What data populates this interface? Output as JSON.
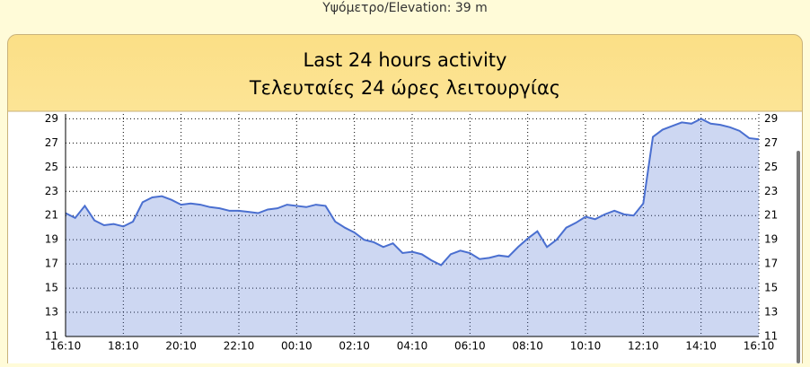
{
  "header": {
    "elevation": "Υψόμετρο/Elevation: 39 m"
  },
  "chart_data": {
    "type": "area",
    "title": "Last 24 hours activity",
    "subtitle": "Τελευταίες 24 ώρες λειτουργίας",
    "categories": [
      "16:10",
      null,
      null,
      null,
      null,
      null,
      "18:10",
      null,
      null,
      null,
      null,
      null,
      "20:10",
      null,
      null,
      null,
      null,
      null,
      "22:10",
      null,
      null,
      null,
      null,
      null,
      "00:10",
      null,
      null,
      null,
      null,
      null,
      "02:10",
      null,
      null,
      null,
      null,
      null,
      "04:10",
      null,
      null,
      null,
      null,
      null,
      "06:10",
      null,
      null,
      null,
      null,
      null,
      "08:10",
      null,
      null,
      null,
      null,
      null,
      "10:10",
      null,
      null,
      null,
      null,
      null,
      "12:10",
      null,
      null,
      null,
      null,
      null,
      "14:10",
      null,
      null,
      null,
      null,
      null,
      "16:10"
    ],
    "values": [
      21.2,
      20.8,
      21.8,
      20.6,
      20.2,
      20.3,
      20.1,
      20.5,
      22.1,
      22.5,
      22.6,
      22.3,
      21.9,
      22.0,
      21.9,
      21.7,
      21.6,
      21.4,
      21.4,
      21.3,
      21.2,
      21.5,
      21.6,
      21.9,
      21.8,
      21.7,
      21.9,
      21.8,
      20.5,
      20.0,
      19.6,
      19.0,
      18.8,
      18.4,
      18.7,
      17.9,
      18.0,
      17.8,
      17.3,
      16.9,
      17.8,
      18.1,
      17.9,
      17.4,
      17.5,
      17.7,
      17.6,
      18.4,
      19.1,
      19.7,
      18.4,
      19.0,
      20.0,
      20.4,
      20.9,
      20.7,
      21.1,
      21.4,
      21.1,
      21.0,
      22.0,
      27.5,
      28.1,
      28.4,
      28.7,
      28.6,
      29.0,
      28.6,
      28.5,
      28.3,
      28.0,
      27.4,
      27.3
    ],
    "color": "#4a6fd0",
    "ylim": [
      11,
      29.4
    ],
    "yticks": [
      11,
      13,
      15,
      17,
      19,
      21,
      23,
      25,
      27,
      29
    ],
    "grid": true
  }
}
